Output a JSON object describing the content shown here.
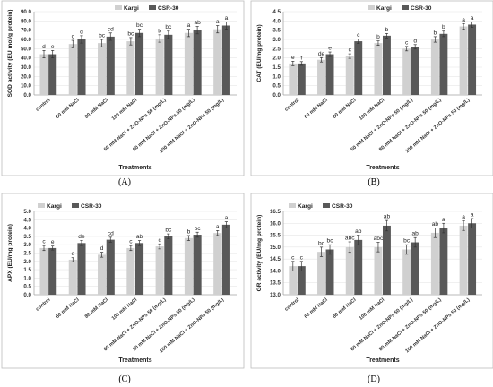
{
  "colors": {
    "kargi": "#d0d0d0",
    "csr30": "#595959",
    "grid": "#e6e6e6",
    "frame": "#bdbdbd"
  },
  "chart_data": [
    {
      "type": "bar",
      "panel_label": "(A)",
      "categories": [
        "control",
        "60 mM NaCl",
        "80 mM NaCl",
        "100 mM NaCl",
        "60 mM NaCl + ZnO-NPs 50 (mg/L)",
        "80 mM NaCl + ZnO-NPs 50 (mg/L)",
        "100 mM NaCl + ZnO-NPs 50 (mg/L)"
      ],
      "xlabel": "Treatments",
      "ylabel": "SOD activity (EU mol/g protein)",
      "ylim": [
        0,
        90
      ],
      "yticks": [
        "0.0",
        "10.0",
        "20.0",
        "30.0",
        "40.0",
        "50.0",
        "60.0",
        "70.0",
        "80.0",
        "90.0"
      ],
      "legend_position": "top-center",
      "grid": true,
      "series": [
        {
          "name": "Kargi",
          "values": [
            44,
            55,
            56,
            58,
            61,
            67,
            71
          ],
          "errors": [
            4,
            4,
            4,
            4,
            4,
            4,
            4
          ],
          "letters": [
            "d",
            "c",
            "bc",
            "bc",
            "b",
            "a",
            "a"
          ]
        },
        {
          "name": "CSR-30",
          "values": [
            44,
            60,
            63,
            67,
            65,
            70,
            75
          ],
          "errors": [
            4,
            4,
            4,
            4,
            4,
            4,
            4
          ],
          "letters": [
            "e",
            "d",
            "cd",
            "bc",
            "bc",
            "ab",
            "a"
          ]
        }
      ]
    },
    {
      "type": "bar",
      "panel_label": "(B)",
      "categories": [
        "control",
        "60 mM NaCl",
        "80 mM NaCl",
        "100 mM NaCl",
        "60 mM NaCl + ZnO-NPs 50 (mg/L)",
        "80 mM NaCl + ZnO-NPs 50 (mg/L)",
        "100 mM NaCl + ZnO-NPs 50 (mg/L)"
      ],
      "xlabel": "Treatments",
      "ylabel": "CAT (EU/mg protein)",
      "ylim": [
        0,
        4.5
      ],
      "yticks": [
        "0.0",
        "0.5",
        "1.0",
        "1.5",
        "2.0",
        "2.5",
        "3.0",
        "3.5",
        "4.0",
        "4.5"
      ],
      "legend_position": "top-center",
      "grid": true,
      "series": [
        {
          "name": "Kargi",
          "values": [
            1.7,
            1.9,
            2.1,
            2.8,
            2.5,
            3.0,
            3.7
          ],
          "errors": [
            0.12,
            0.12,
            0.12,
            0.12,
            0.12,
            0.15,
            0.15
          ],
          "letters": [
            "e",
            "de",
            "c",
            "b",
            "c",
            "b",
            "a"
          ]
        },
        {
          "name": "CSR-30",
          "values": [
            1.7,
            2.2,
            2.9,
            3.2,
            2.6,
            3.3,
            3.8
          ],
          "errors": [
            0.1,
            0.12,
            0.12,
            0.12,
            0.12,
            0.15,
            0.15
          ],
          "letters": [
            "f",
            "e",
            "c",
            "b",
            "d",
            "b",
            "a"
          ]
        }
      ]
    },
    {
      "type": "bar",
      "panel_label": "(C)",
      "categories": [
        "control",
        "60 mM NaCl",
        "80 mM NaCl",
        "100 mM NaCl",
        "60 mM NaCl + ZnO-NPs 50 (mg/L)",
        "80 mM NaCl + ZnO-NPs 50 (mg/L)",
        "100 mM NaCl + ZnO-NPs 50 (mg/L)"
      ],
      "xlabel": "Treatments",
      "ylabel": "APX (EU/mg protein)",
      "ylim": [
        0,
        5
      ],
      "yticks": [
        "0.0",
        "0.5",
        "1.0",
        "1.5",
        "2.0",
        "2.5",
        "3.0",
        "3.5",
        "4.0",
        "4.5",
        "5.0"
      ],
      "legend_position": "top-left",
      "grid": true,
      "series": [
        {
          "name": "Kargi",
          "values": [
            2.8,
            2.1,
            2.4,
            2.8,
            2.9,
            3.4,
            3.7
          ],
          "errors": [
            0.15,
            0.12,
            0.15,
            0.15,
            0.15,
            0.15,
            0.15
          ],
          "letters": [
            "c",
            "e",
            "d",
            "c",
            "c",
            "b",
            "a"
          ]
        },
        {
          "name": "CSR-30",
          "values": [
            2.8,
            3.1,
            3.3,
            3.1,
            3.5,
            3.6,
            4.2
          ],
          "errors": [
            0.12,
            0.15,
            0.15,
            0.15,
            0.15,
            0.15,
            0.18
          ],
          "letters": [
            "e",
            "de",
            "cd",
            "ab",
            "bc",
            "bc",
            "a"
          ]
        }
      ]
    },
    {
      "type": "bar",
      "panel_label": "(D)",
      "categories": [
        "control",
        "60 mM NaCl",
        "80 mM NaCl",
        "100 mM NaCl",
        "60 mM NaCl + ZnO-NPs 50 (mg/L)",
        "80 mM NaCl + ZnO-NPs 50 (mg/L)",
        "100 mM NaCl + ZnO-NPs 50 (mg/L)"
      ],
      "xlabel": "Treatments",
      "ylabel": "GR activity (EU/mg protein)",
      "ylim": [
        13,
        16.5
      ],
      "yticks": [
        "13.0",
        "13.5",
        "14.0",
        "14.5",
        "15.0",
        "15.5",
        "16.0",
        "16.5"
      ],
      "legend_position": "top-left",
      "grid": true,
      "series": [
        {
          "name": "Kargi",
          "values": [
            14.2,
            14.8,
            15.0,
            15.0,
            14.9,
            15.6,
            15.9
          ],
          "errors": [
            0.2,
            0.2,
            0.22,
            0.2,
            0.2,
            0.2,
            0.2
          ],
          "letters": [
            "c",
            "bc",
            "abc",
            "abc",
            "bc",
            "ab",
            "a"
          ]
        },
        {
          "name": "CSR-30",
          "values": [
            14.2,
            14.9,
            15.3,
            15.9,
            15.2,
            15.8,
            16.0
          ],
          "errors": [
            0.2,
            0.2,
            0.2,
            0.22,
            0.2,
            0.2,
            0.2
          ],
          "letters": [
            "c",
            "bc",
            "ab",
            "ab",
            "ab",
            "a",
            "a"
          ]
        }
      ]
    }
  ]
}
